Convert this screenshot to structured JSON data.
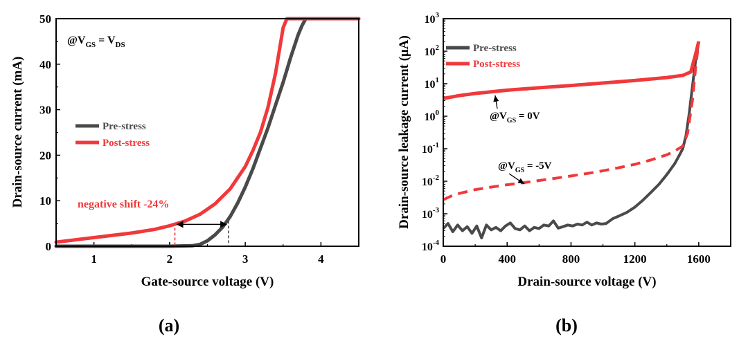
{
  "colors": {
    "pre": "#4a4a4a",
    "post": "#f0393b",
    "axis": "#000000"
  },
  "chart_data": [
    {
      "id": "a",
      "type": "line",
      "panel_label": "(a)",
      "xlabel": "Gate-source voltage (V)",
      "ylabel": "Drain-source current (mA)",
      "xlim": [
        0.5,
        4.5
      ],
      "ylim": [
        0,
        50
      ],
      "xticks": [
        1,
        2,
        3,
        4
      ],
      "yticks": [
        0,
        10,
        20,
        30,
        40,
        50
      ],
      "legend": {
        "position": "center-left",
        "entries": [
          "Pre-stress",
          "Post-stress"
        ]
      },
      "annotations": {
        "condition": {
          "prefix": "@V",
          "sub1": "GS",
          "middle": " = V",
          "sub2": "DS"
        },
        "shift_text": "negative shift -24%",
        "shift_from_x": 2.07,
        "shift_to_x": 2.78,
        "shift_y": 4.5
      },
      "series": [
        {
          "name": "Pre-stress",
          "color_key": "pre",
          "style": "solid",
          "x": [
            0.5,
            1.5,
            2.0,
            2.3,
            2.4,
            2.5,
            2.6,
            2.7,
            2.8,
            2.9,
            3.0,
            3.1,
            3.2,
            3.3,
            3.4,
            3.5,
            3.6,
            3.7,
            3.75,
            3.8,
            3.85,
            4.5
          ],
          "y": [
            0,
            0,
            0,
            0.1,
            0.4,
            1.2,
            2.5,
            4.2,
            6.5,
            9.5,
            13,
            17,
            21.5,
            26,
            31,
            36,
            41.5,
            46.5,
            48.5,
            50,
            50,
            50
          ]
        },
        {
          "name": "Post-stress",
          "color_key": "post",
          "style": "solid",
          "x": [
            0.5,
            1.0,
            1.5,
            1.8,
            2.0,
            2.2,
            2.4,
            2.6,
            2.8,
            3.0,
            3.1,
            3.2,
            3.3,
            3.4,
            3.5,
            3.55,
            4.5
          ],
          "y": [
            0.9,
            1.9,
            2.9,
            3.7,
            4.5,
            5.5,
            7.0,
            9.3,
            12.6,
            17.5,
            21,
            25,
            30.5,
            38,
            48,
            50,
            50
          ]
        }
      ]
    },
    {
      "id": "b",
      "type": "line",
      "panel_label": "(b)",
      "xlabel": "Drain-source voltage (V)",
      "ylabel": "Drain-source leakage current (μA)",
      "xlim": [
        0,
        1800
      ],
      "ylim": [
        0.0001,
        1000
      ],
      "yscale": "log",
      "xticks": [
        0,
        400,
        800,
        1200,
        1600
      ],
      "yticks": [
        {
          "mantissa": "10",
          "exp": "-4",
          "value": 0.0001
        },
        {
          "mantissa": "10",
          "exp": "-3",
          "value": 0.001
        },
        {
          "mantissa": "10",
          "exp": "-2",
          "value": 0.01
        },
        {
          "mantissa": "10",
          "exp": "-1",
          "value": 0.1
        },
        {
          "mantissa": "10",
          "exp": "0",
          "value": 1
        },
        {
          "mantissa": "10",
          "exp": "1",
          "value": 10
        },
        {
          "mantissa": "10",
          "exp": "2",
          "value": 100
        },
        {
          "mantissa": "10",
          "exp": "3",
          "value": 1000
        }
      ],
      "legend": {
        "position": "top-left",
        "entries": [
          "Pre-stress",
          "Post-stress"
        ]
      },
      "annotations": {
        "vgs0": {
          "prefix": "@V",
          "sub": "GS",
          "suffix": " = 0V",
          "arrow_to_x": 420,
          "arrow_to_y": 6.5
        },
        "vgs5": {
          "prefix": "@V",
          "sub": "GS",
          "suffix": " = -5V",
          "arrow_to_x": 560,
          "arrow_to_y": 0.011
        }
      },
      "series": [
        {
          "name": "Pre-stress",
          "color_key": "pre",
          "style": "solid",
          "x": [
            0,
            30,
            60,
            90,
            120,
            150,
            180,
            210,
            240,
            270,
            300,
            330,
            360,
            390,
            420,
            450,
            480,
            510,
            540,
            570,
            600,
            630,
            660,
            690,
            720,
            750,
            780,
            810,
            840,
            870,
            900,
            930,
            960,
            990,
            1020,
            1060,
            1100,
            1150,
            1200,
            1250,
            1300,
            1350,
            1400,
            1450,
            1480,
            1500,
            1520,
            1540,
            1560,
            1580,
            1600
          ],
          "y": [
            0.00035,
            0.0005,
            0.00028,
            0.00045,
            0.0003,
            0.0004,
            0.00025,
            0.00042,
            0.00018,
            0.00045,
            0.00032,
            0.00038,
            0.0003,
            0.00042,
            0.00052,
            0.00035,
            0.00032,
            0.00042,
            0.0003,
            0.00038,
            0.00035,
            0.00045,
            0.00042,
            0.0006,
            0.00036,
            0.0004,
            0.00045,
            0.00042,
            0.00048,
            0.00045,
            0.00055,
            0.00045,
            0.00052,
            0.00048,
            0.0005,
            0.0007,
            0.00085,
            0.0011,
            0.0016,
            0.0026,
            0.0045,
            0.008,
            0.016,
            0.035,
            0.065,
            0.1,
            0.25,
            1.2,
            8,
            50,
            200
          ]
        },
        {
          "name": "Post-stress",
          "color_key": "post",
          "style": "solid",
          "x": [
            0,
            100,
            200,
            400,
            600,
            800,
            1000,
            1200,
            1400,
            1500,
            1550,
            1580,
            1600
          ],
          "y": [
            3.5,
            4.3,
            5.0,
            6.3,
            7.5,
            8.8,
            10.5,
            12.5,
            15.5,
            18,
            23,
            80,
            200
          ]
        },
        {
          "name": "",
          "color_key": "post",
          "style": "dashed",
          "x": [
            0,
            50,
            100,
            200,
            300,
            400,
            500,
            600,
            700,
            800,
            900,
            1000,
            1100,
            1200,
            1300,
            1400,
            1450,
            1500,
            1530,
            1560,
            1580,
            1600
          ],
          "y": [
            0.0027,
            0.0035,
            0.0042,
            0.0055,
            0.0066,
            0.0078,
            0.009,
            0.0105,
            0.0123,
            0.0145,
            0.0172,
            0.021,
            0.026,
            0.033,
            0.045,
            0.065,
            0.085,
            0.12,
            0.3,
            3,
            30,
            200
          ]
        }
      ]
    }
  ]
}
